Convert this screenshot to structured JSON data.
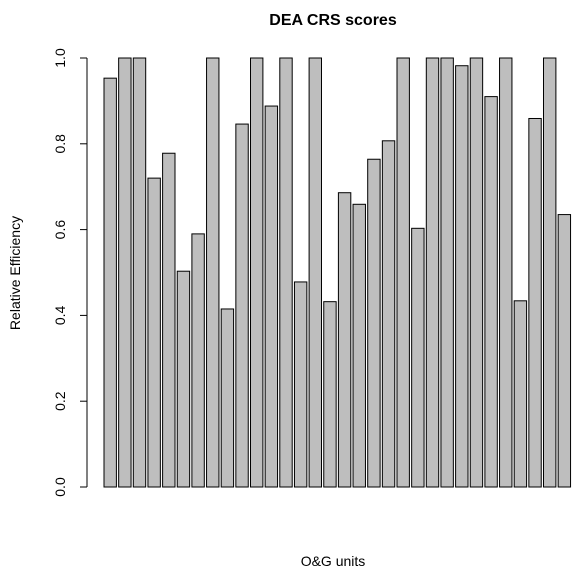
{
  "chart_data": {
    "type": "bar",
    "title": "DEA CRS scores",
    "xlabel": "O&G units",
    "ylabel": "Relative Efficiency",
    "ylim": [
      0,
      1
    ],
    "yticks": [
      "0.0",
      "0.2",
      "0.4",
      "0.6",
      "0.8",
      "1.0"
    ],
    "grid": false,
    "bar_color": "#bebebe",
    "values": [
      0.953,
      1.0,
      1.0,
      0.72,
      0.778,
      0.503,
      0.59,
      1.0,
      0.415,
      0.846,
      1.0,
      0.888,
      1.0,
      0.478,
      1.0,
      0.432,
      0.686,
      0.659,
      0.764,
      0.807,
      1.0,
      0.603,
      1.0,
      1.0,
      0.982,
      1.0,
      0.91,
      1.0,
      0.434,
      0.859,
      1.0,
      0.635
    ]
  }
}
